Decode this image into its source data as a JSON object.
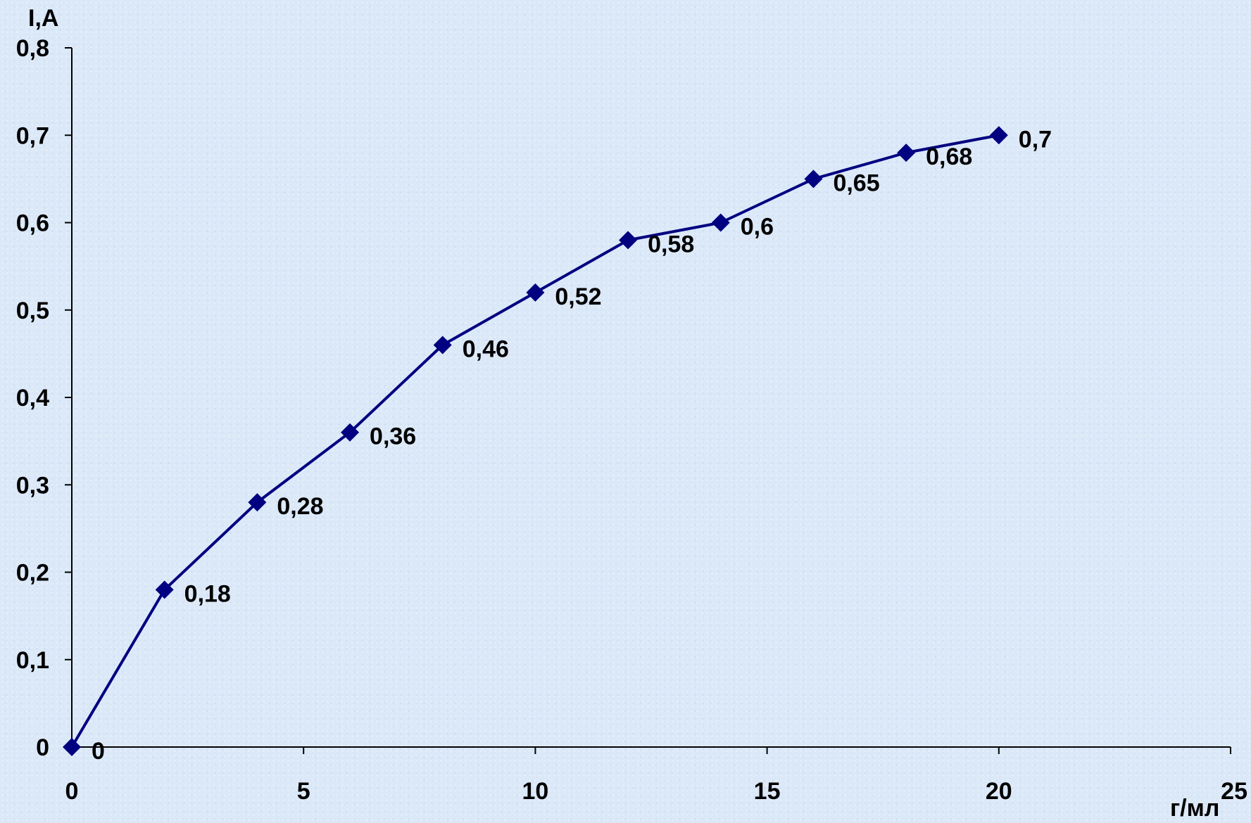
{
  "chart_data": {
    "type": "line",
    "title": "",
    "ylabel": "I,A",
    "xlabel": "г/мл",
    "x": [
      0,
      2,
      4,
      6,
      8,
      10,
      12,
      14,
      16,
      18,
      20
    ],
    "series": [
      {
        "values": [
          0,
          0.18,
          0.28,
          0.36,
          0.46,
          0.52,
          0.58,
          0.6,
          0.65,
          0.68,
          0.7
        ],
        "labels": [
          "0",
          "0,18",
          "0,28",
          "0,36",
          "0,46",
          "0,52",
          "0,58",
          "0,6",
          "0,65",
          "0,68",
          "0,7"
        ],
        "color": "#000080",
        "marker": "diamond"
      }
    ],
    "xlim": [
      0,
      25
    ],
    "ylim": [
      0,
      0.8
    ],
    "x_ticks": [
      0,
      5,
      10,
      15,
      20,
      25
    ],
    "x_tick_labels": [
      "0",
      "5",
      "10",
      "15",
      "20",
      "25"
    ],
    "y_ticks": [
      0,
      0.1,
      0.2,
      0.3,
      0.4,
      0.5,
      0.6,
      0.7,
      0.8
    ],
    "y_tick_labels": [
      "0",
      "0,1",
      "0,2",
      "0,3",
      "0,4",
      "0,5",
      "0,6",
      "0,7",
      "0,8"
    ],
    "grid": false,
    "legend": "none"
  }
}
